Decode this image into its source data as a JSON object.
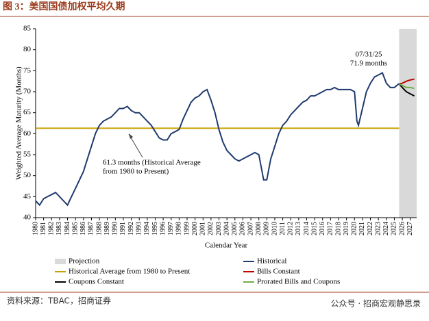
{
  "header": {
    "title": "图 3：美国国债加权平均久期"
  },
  "chart_data": {
    "type": "line",
    "ylabel": "Weighted Average Maturity (Months)",
    "xlabel": "Calendar Year",
    "xlim": [
      1980,
      2027.8
    ],
    "ylim": [
      40,
      85
    ],
    "yticks": [
      40,
      45,
      50,
      55,
      60,
      65,
      70,
      75,
      80,
      85
    ],
    "xticks": [
      1980,
      1981,
      1982,
      1983,
      1984,
      1985,
      1986,
      1987,
      1988,
      1989,
      1990,
      1991,
      1992,
      1993,
      1994,
      1995,
      1996,
      1997,
      1998,
      1999,
      2000,
      2001,
      2002,
      2003,
      2004,
      2005,
      2006,
      2007,
      2008,
      2009,
      2010,
      2011,
      2012,
      2013,
      2014,
      2015,
      2016,
      2017,
      2018,
      2019,
      2020,
      2021,
      2022,
      2023,
      2024,
      2025,
      2026,
      2027
    ],
    "projection": {
      "name": "Projection",
      "range": [
        2025.6,
        2027.8
      ],
      "color": "#d9d9d9"
    },
    "average": {
      "name": "Historical Average from 1980 to Present",
      "value": 61.3,
      "color": "#c9a100"
    },
    "series": [
      {
        "name": "Historical",
        "color": "#1f3a6e",
        "x": [
          1980,
          1980.5,
          1981,
          1981.5,
          1982,
          1982.5,
          1983,
          1983.5,
          1984,
          1984.5,
          1985,
          1985.5,
          1986,
          1986.5,
          1987,
          1987.5,
          1988,
          1988.5,
          1989,
          1989.5,
          1990,
          1990.5,
          1991,
          1991.5,
          1992,
          1992.5,
          1993,
          1993.5,
          1994,
          1994.5,
          1995,
          1995.5,
          1996,
          1996.5,
          1997,
          1997.5,
          1998,
          1998.5,
          1999,
          1999.5,
          2000,
          2000.5,
          2001,
          2001.5,
          2002,
          2002.5,
          2003,
          2003.5,
          2004,
          2004.5,
          2005,
          2005.5,
          2006,
          2006.5,
          2007,
          2007.5,
          2008,
          2008.3,
          2008.6,
          2009,
          2009.5,
          2010,
          2010.5,
          2011,
          2011.5,
          2012,
          2012.5,
          2013,
          2013.5,
          2014,
          2014.5,
          2015,
          2015.5,
          2016,
          2016.5,
          2017,
          2017.5,
          2018,
          2018.5,
          2019,
          2019.5,
          2020,
          2020.3,
          2020.5,
          2021,
          2021.5,
          2022,
          2022.5,
          2023,
          2023.5,
          2024,
          2024.5,
          2025,
          2025.58
        ],
        "values": [
          44,
          43,
          44.5,
          45,
          45.5,
          46,
          45,
          44,
          43,
          45,
          47,
          49,
          51,
          54,
          57,
          60,
          62,
          63,
          63.5,
          64,
          65,
          66,
          66,
          66.5,
          65.5,
          65,
          65,
          64,
          63,
          62,
          60.5,
          59,
          58.5,
          58.5,
          60,
          60.5,
          61,
          63.5,
          65.5,
          67.5,
          68.5,
          69,
          70,
          70.5,
          68,
          65,
          61,
          58,
          56,
          55,
          54,
          53.5,
          54,
          54.5,
          55,
          55.5,
          55,
          52,
          49,
          49,
          54,
          57,
          60,
          62,
          63,
          64.5,
          65.5,
          66.5,
          67.5,
          68,
          69,
          69,
          69.5,
          70,
          70.5,
          70.5,
          71,
          70.5,
          70.5,
          70.5,
          70.5,
          70,
          63,
          62,
          66,
          70,
          72,
          73.5,
          74,
          74.5,
          72,
          71,
          71,
          71.9
        ]
      },
      {
        "name": "Bills Constant",
        "color": "#c00000",
        "x": [
          2025.58,
          2026,
          2026.5,
          2027,
          2027.5
        ],
        "values": [
          71.9,
          72,
          72.5,
          72.8,
          73
        ]
      },
      {
        "name": "Coupons Constant",
        "color": "#000000",
        "x": [
          2025.58,
          2026,
          2026.5,
          2027,
          2027.5
        ],
        "values": [
          71.9,
          71,
          70,
          69.5,
          69
        ]
      },
      {
        "name": "Prorated Bills and Coupons",
        "color": "#70ad47",
        "x": [
          2025.58,
          2026,
          2026.5,
          2027,
          2027.5
        ],
        "values": [
          71.9,
          71.5,
          71,
          71,
          70.8
        ]
      }
    ],
    "annotations": [
      {
        "lines": [
          "07/31/25",
          "71.9 months"
        ]
      },
      {
        "lines": [
          "61.3 months (Historical Average",
          "from 1980 to Present)"
        ]
      }
    ]
  },
  "footer": {
    "source": "资料来源：TBAC，招商证券",
    "watermark": "公众号 · 招商宏观静思录"
  }
}
